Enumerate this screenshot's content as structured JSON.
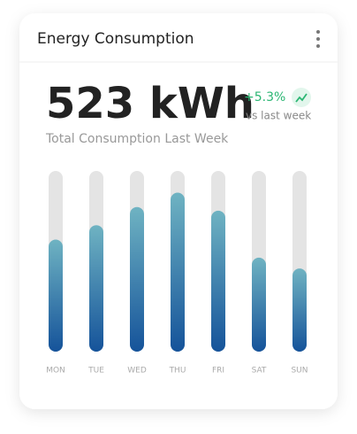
{
  "header": {
    "title": "Energy Consumption"
  },
  "summary": {
    "value": "523 kWh",
    "change": "+5.3%",
    "change_note": "vs last week",
    "caption": "Total Consumption Last Week"
  },
  "chart_data": {
    "type": "bar",
    "categories": [
      "MON",
      "TUE",
      "WED",
      "THU",
      "FRI",
      "SAT",
      "SUN"
    ],
    "values": [
      62,
      70,
      80,
      88,
      78,
      52,
      46
    ],
    "ylim": [
      0,
      100
    ],
    "color": "#1a5a9c"
  }
}
